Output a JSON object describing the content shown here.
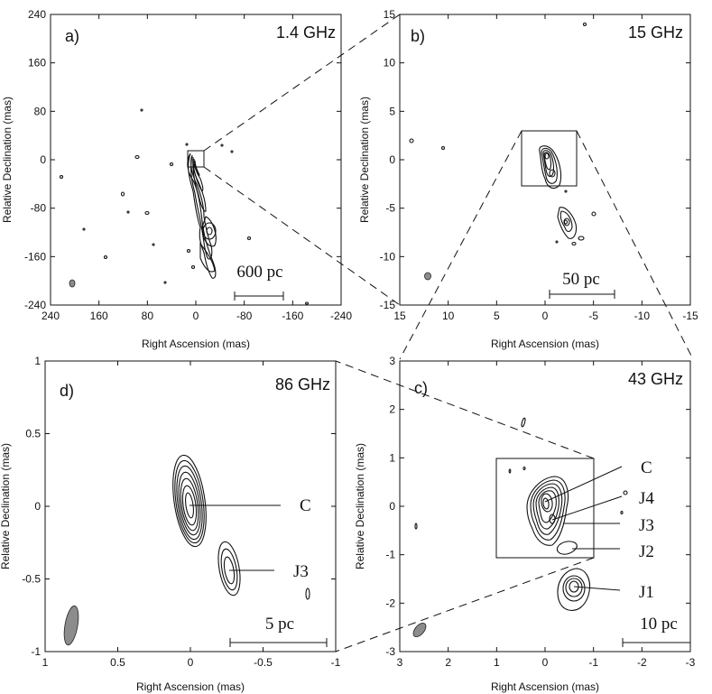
{
  "chart_data": [
    {
      "type": "contour",
      "panel_label": "a)",
      "frequency": "1.4 GHz",
      "xlabel": "Right Ascension (mas)",
      "ylabel": "Relative Declination (mas)",
      "xlim": [
        240,
        -240
      ],
      "ylim": [
        -240,
        240
      ],
      "xticks": [
        "240",
        "160",
        "80",
        "0",
        "-80",
        "-160",
        "-240"
      ],
      "yticks": [
        "240",
        "160",
        "80",
        "0",
        "-80",
        "-160",
        "-240"
      ],
      "scalebar_label": "600 pc",
      "zoom_box": {
        "x": [
          -8,
          8
        ],
        "y": [
          -8,
          8
        ]
      }
    },
    {
      "type": "contour",
      "panel_label": "b)",
      "frequency": "15 GHz",
      "xlabel": "Right Ascension (mas)",
      "ylabel": "Relative Declination (mas)",
      "xlim": [
        15,
        -15
      ],
      "ylim": [
        -15,
        15
      ],
      "xticks": [
        "15",
        "10",
        "5",
        "0",
        "-5",
        "-10",
        "-15"
      ],
      "yticks": [
        "15",
        "10",
        "5",
        "0",
        "-5",
        "-10",
        "-15"
      ],
      "scalebar_label": "50 pc",
      "zoom_box": {
        "x": [
          -3,
          3
        ],
        "y": [
          -3,
          3
        ]
      }
    },
    {
      "type": "contour",
      "panel_label": "c)",
      "frequency": "43 GHz",
      "xlabel": "Right Ascension (mas)",
      "ylabel": "Relative Declination (mas)",
      "xlim": [
        3,
        -3
      ],
      "ylim": [
        -3,
        3
      ],
      "xticks": [
        "3",
        "2",
        "1",
        "0",
        "-1",
        "-2",
        "-3"
      ],
      "yticks": [
        "3",
        "2",
        "1",
        "0",
        "-1",
        "-2",
        "-3"
      ],
      "scalebar_label": "10 pc",
      "zoom_box": {
        "x": [
          -1,
          1
        ],
        "y": [
          -1,
          1
        ]
      },
      "components": [
        {
          "name": "C",
          "x": 0.0,
          "y": 0.0
        },
        {
          "name": "J4",
          "x": -0.2,
          "y": -0.2
        },
        {
          "name": "J3",
          "x": -0.3,
          "y": -0.4
        },
        {
          "name": "J2",
          "x": -0.5,
          "y": -0.9
        },
        {
          "name": "J1",
          "x": -0.6,
          "y": -1.65
        }
      ]
    },
    {
      "type": "contour",
      "panel_label": "d)",
      "frequency": "86 GHz",
      "xlabel": "Right Ascension (mas)",
      "ylabel": "Relative Declination (mas)",
      "xlim": [
        1,
        -1
      ],
      "ylim": [
        -1,
        1
      ],
      "xticks": [
        "1",
        "0.5",
        "0",
        "-0.5",
        "-1"
      ],
      "yticks": [
        "1",
        "0.5",
        "0",
        "-0.5",
        "-1"
      ],
      "scalebar_label": "5 pc",
      "components": [
        {
          "name": "C",
          "x": 0.0,
          "y": 0.0
        },
        {
          "name": "J3",
          "x": -0.27,
          "y": -0.45
        }
      ]
    }
  ]
}
